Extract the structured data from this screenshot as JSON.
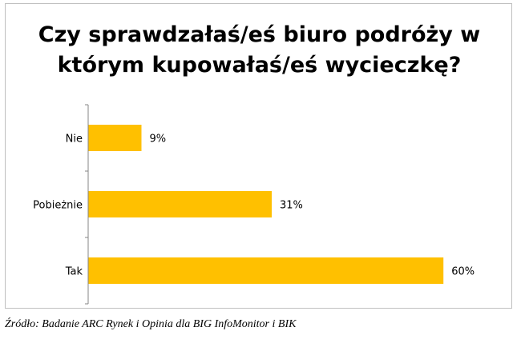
{
  "chart_data": {
    "type": "bar",
    "orientation": "horizontal",
    "title_lines": [
      "Czy sprawdzałaś/eś biuro podróży w",
      "którym kupowałaś/eś wycieczkę?"
    ],
    "categories": [
      "Nie",
      "Pobieżnie",
      "Tak"
    ],
    "values": [
      9,
      31,
      60
    ],
    "data_labels": [
      "9%",
      "31%",
      "60%"
    ],
    "unit": "%",
    "xlim": [
      0,
      62
    ],
    "grid": false,
    "legend": "none",
    "bar_color": "#ffc000"
  },
  "source": "Źródło: Badanie ARC Rynek i Opinia dla BIG InfoMonitor i BIK"
}
